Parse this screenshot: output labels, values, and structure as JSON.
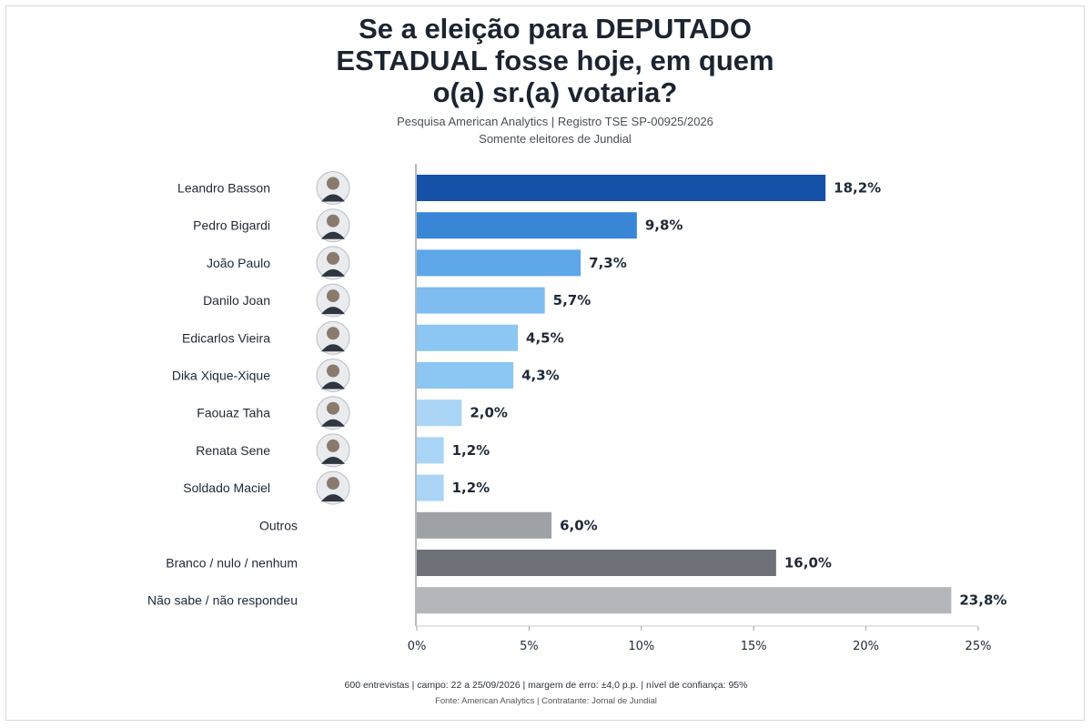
{
  "header": {
    "title_lines": [
      "Se a eleição para DEPUTADO",
      "ESTADUAL fosse hoje, em quem",
      "o(a) sr.(a) votaria?"
    ],
    "subtitle_lines": [
      "Pesquisa American Analytics | Registro TSE SP-00925/2026",
      "Somente eleitores de Jundial"
    ]
  },
  "footer": {
    "line1": "600 entrevistas | campo: 22 a 25/09/2026 | margem de erro: ±4,0 p.p. | nível de confiança: 95%",
    "line2": "Fonte: American Analytics | Contratante: Jornal de Jundial"
  },
  "chart_data": {
    "type": "bar",
    "orientation": "horizontal",
    "categories": [
      "Leandro Basson",
      "Pedro Bigardi",
      "João Paulo",
      "Danilo Joan",
      "Edicarlos Vieira",
      "Dika Xique-Xique",
      "Faouaz Taha",
      "Renata Sene",
      "Soldado Maciel",
      "Outros",
      "Branco / nulo / nenhum",
      "Não sabe / não respondeu"
    ],
    "values": [
      18.2,
      9.8,
      7.3,
      5.7,
      4.5,
      4.3,
      2.0,
      1.2,
      1.2,
      6.0,
      16.0,
      23.8
    ],
    "value_labels": [
      "18,2%",
      "9,8%",
      "7,3%",
      "5,7%",
      "4,5%",
      "4,3%",
      "2,0%",
      "1,2%",
      "1,2%",
      "6,0%",
      "16,0%",
      "23,8%"
    ],
    "bar_colors": [
      "#1651a8",
      "#3a86d6",
      "#5ea7e8",
      "#7fbdf0",
      "#8cc6f2",
      "#8cc6f2",
      "#a9d4f5",
      "#a9d4f5",
      "#a9d4f5",
      "#9ea1a6",
      "#6e7177",
      "#b3b6ba"
    ],
    "has_photo": [
      true,
      true,
      true,
      true,
      true,
      true,
      true,
      true,
      true,
      false,
      false,
      false
    ],
    "xlim": [
      0,
      25
    ],
    "xticks": [
      0,
      5,
      10,
      15,
      20,
      25
    ],
    "xtick_labels": [
      "0%",
      "5%",
      "10%",
      "15%",
      "20%",
      "25%"
    ],
    "xlabel": "",
    "ylabel": "",
    "grid": false,
    "legend": "none"
  }
}
